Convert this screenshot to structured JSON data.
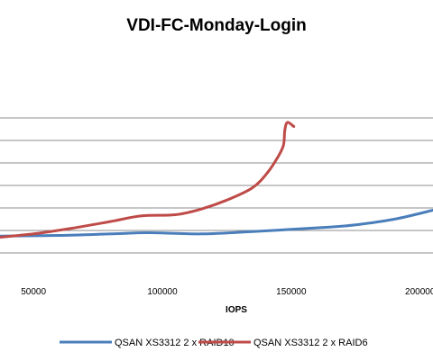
{
  "chart_data": {
    "type": "line",
    "title": "VDI-FC-Monday-Login",
    "xlabel": "IOPS",
    "ylabel": "",
    "x_ticks": [
      "50000",
      "100000",
      "150000",
      "200000"
    ],
    "x_tick_values": [
      50000,
      100000,
      150000,
      200000
    ],
    "xlim": [
      37000,
      205000
    ],
    "ylim": [
      0,
      10
    ],
    "y_gridlines": [
      1,
      2,
      3,
      4,
      5,
      6,
      7
    ],
    "grid": "horizontal",
    "legend": "bottom",
    "series": [
      {
        "name": "QSAN XS3312 2 x RAID10",
        "color": "#4A7EBB",
        "points": [
          [
            37000,
            1.75
          ],
          [
            60000,
            1.78
          ],
          [
            80000,
            1.85
          ],
          [
            95000,
            1.9
          ],
          [
            115000,
            1.85
          ],
          [
            135000,
            1.95
          ],
          [
            150000,
            2.05
          ],
          [
            165000,
            2.15
          ],
          [
            175000,
            2.25
          ],
          [
            190000,
            2.5
          ],
          [
            205000,
            2.9
          ]
        ]
      },
      {
        "name": "QSAN XS3312 2 x RAID6",
        "color": "#BE4B48",
        "points": [
          [
            37000,
            1.7
          ],
          [
            50000,
            1.85
          ],
          [
            65000,
            2.1
          ],
          [
            80000,
            2.4
          ],
          [
            92000,
            2.65
          ],
          [
            105000,
            2.7
          ],
          [
            115000,
            2.95
          ],
          [
            125000,
            3.35
          ],
          [
            135000,
            3.9
          ],
          [
            141000,
            4.6
          ],
          [
            145000,
            5.3
          ],
          [
            147000,
            5.8
          ],
          [
            147500,
            6.45
          ],
          [
            148500,
            6.8
          ],
          [
            151000,
            6.62
          ]
        ]
      }
    ]
  }
}
